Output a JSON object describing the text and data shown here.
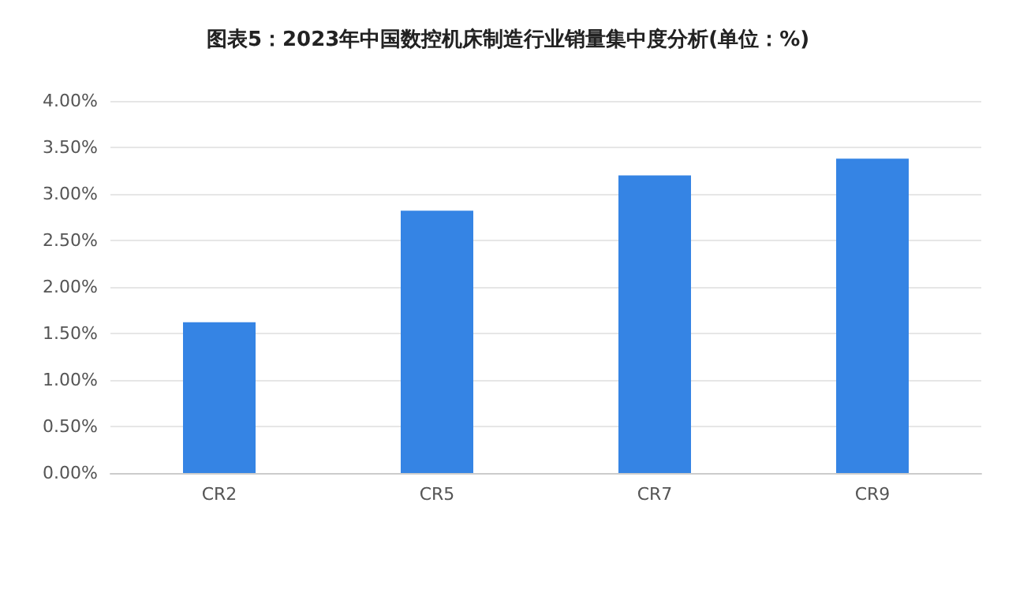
{
  "chart_data": {
    "type": "bar",
    "title": "图表5：2023年中国数控机床制造行业销量集中度分析(单位：%)",
    "categories": [
      "CR2",
      "CR5",
      "CR7",
      "CR9"
    ],
    "values": [
      1.62,
      2.82,
      3.2,
      3.38
    ],
    "color": "#3584e4",
    "ylim": [
      0,
      4
    ],
    "yticks": [
      {
        "value": 0,
        "label": "0.00%"
      },
      {
        "value": 0.5,
        "label": "0.50%"
      },
      {
        "value": 1,
        "label": "1.00%"
      },
      {
        "value": 1.5,
        "label": "1.50%"
      },
      {
        "value": 2,
        "label": "2.00%"
      },
      {
        "value": 2.5,
        "label": "2.50%"
      },
      {
        "value": 3,
        "label": "3.00%"
      },
      {
        "value": 3.5,
        "label": "3.50%"
      },
      {
        "value": 4,
        "label": "4.00%"
      }
    ],
    "grid": "y"
  }
}
